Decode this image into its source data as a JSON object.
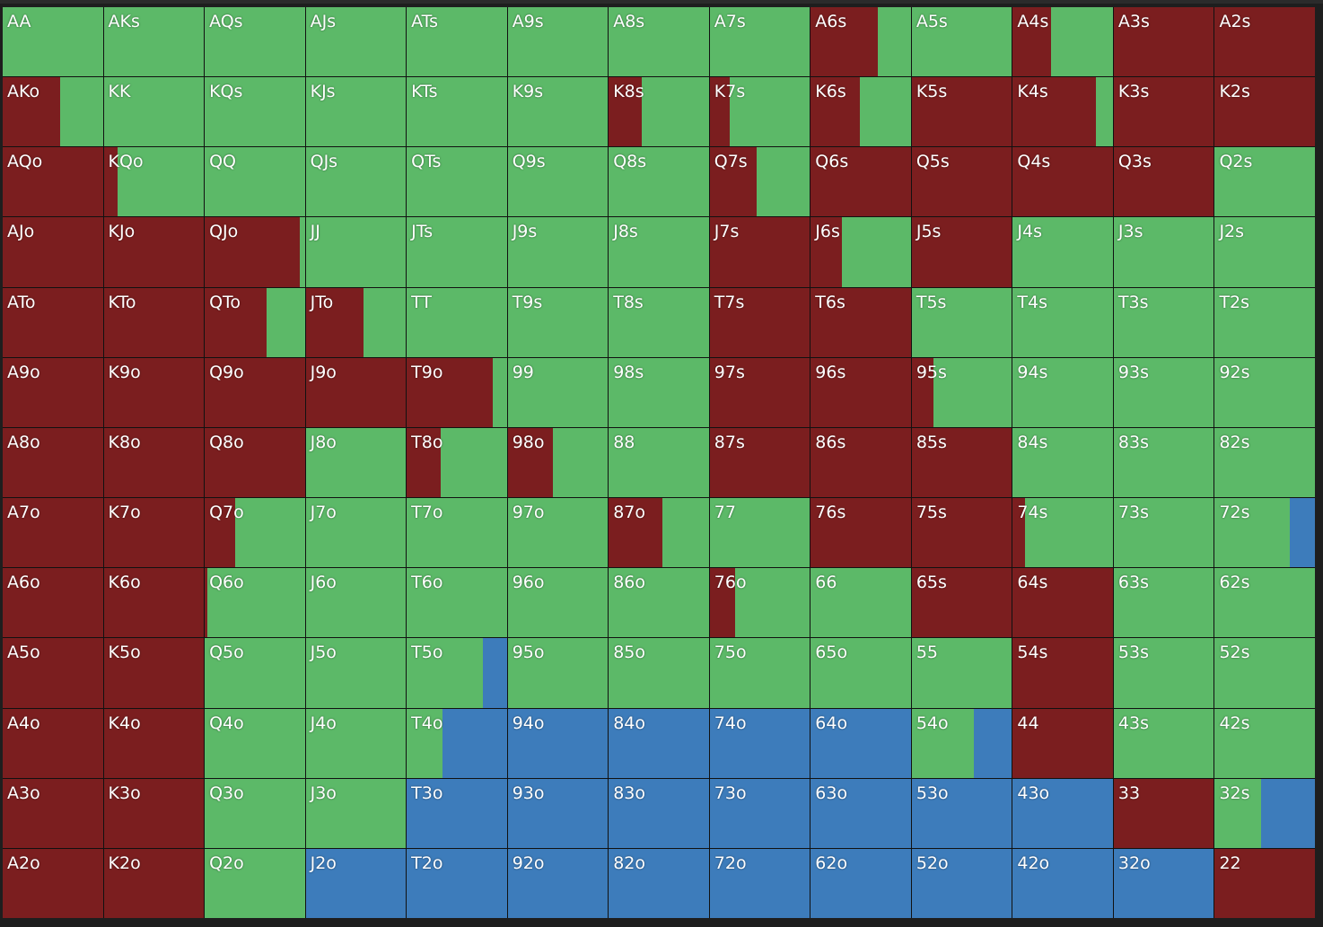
{
  "colors": [
    "#7b1e1f",
    "#5cb968",
    "#3d7cbb"
  ],
  "rows": [
    [
      {
        "label": "AA",
        "mix": [
          0,
          100,
          0
        ]
      },
      {
        "label": "AKs",
        "mix": [
          0,
          100,
          0
        ]
      },
      {
        "label": "AQs",
        "mix": [
          0,
          100,
          0
        ]
      },
      {
        "label": "AJs",
        "mix": [
          0,
          100,
          0
        ]
      },
      {
        "label": "ATs",
        "mix": [
          0,
          100,
          0
        ]
      },
      {
        "label": "A9s",
        "mix": [
          0,
          100,
          0
        ]
      },
      {
        "label": "A8s",
        "mix": [
          0,
          100,
          0
        ]
      },
      {
        "label": "A7s",
        "mix": [
          0,
          100,
          0
        ]
      },
      {
        "label": "A6s",
        "mix": [
          67,
          33,
          0
        ]
      },
      {
        "label": "A5s",
        "mix": [
          0,
          100,
          0
        ]
      },
      {
        "label": "A4s",
        "mix": [
          38,
          62,
          0
        ]
      },
      {
        "label": "A3s",
        "mix": [
          100,
          0,
          0
        ]
      },
      {
        "label": "A2s",
        "mix": [
          100,
          0,
          0
        ]
      }
    ],
    [
      {
        "label": "AKo",
        "mix": [
          57,
          43,
          0
        ]
      },
      {
        "label": "KK",
        "mix": [
          0,
          100,
          0
        ]
      },
      {
        "label": "KQs",
        "mix": [
          0,
          100,
          0
        ]
      },
      {
        "label": "KJs",
        "mix": [
          0,
          100,
          0
        ]
      },
      {
        "label": "KTs",
        "mix": [
          0,
          100,
          0
        ]
      },
      {
        "label": "K9s",
        "mix": [
          0,
          100,
          0
        ]
      },
      {
        "label": "K8s",
        "mix": [
          33,
          67,
          0
        ]
      },
      {
        "label": "K7s",
        "mix": [
          20,
          80,
          0
        ]
      },
      {
        "label": "K6s",
        "mix": [
          49,
          51,
          0
        ]
      },
      {
        "label": "K5s",
        "mix": [
          100,
          0,
          0
        ]
      },
      {
        "label": "K4s",
        "mix": [
          83,
          17,
          0
        ]
      },
      {
        "label": "K3s",
        "mix": [
          100,
          0,
          0
        ]
      },
      {
        "label": "K2s",
        "mix": [
          100,
          0,
          0
        ]
      }
    ],
    [
      {
        "label": "AQo",
        "mix": [
          100,
          0,
          0
        ]
      },
      {
        "label": "KQo",
        "mix": [
          14,
          86,
          0
        ]
      },
      {
        "label": "QQ",
        "mix": [
          0,
          100,
          0
        ]
      },
      {
        "label": "QJs",
        "mix": [
          0,
          100,
          0
        ]
      },
      {
        "label": "QTs",
        "mix": [
          0,
          100,
          0
        ]
      },
      {
        "label": "Q9s",
        "mix": [
          0,
          100,
          0
        ]
      },
      {
        "label": "Q8s",
        "mix": [
          0,
          100,
          0
        ]
      },
      {
        "label": "Q7s",
        "mix": [
          47,
          53,
          0
        ]
      },
      {
        "label": "Q6s",
        "mix": [
          100,
          0,
          0
        ]
      },
      {
        "label": "Q5s",
        "mix": [
          100,
          0,
          0
        ]
      },
      {
        "label": "Q4s",
        "mix": [
          100,
          0,
          0
        ]
      },
      {
        "label": "Q3s",
        "mix": [
          100,
          0,
          0
        ]
      },
      {
        "label": "Q2s",
        "mix": [
          0,
          100,
          0
        ]
      }
    ],
    [
      {
        "label": "AJo",
        "mix": [
          100,
          0,
          0
        ]
      },
      {
        "label": "KJo",
        "mix": [
          100,
          0,
          0
        ]
      },
      {
        "label": "QJo",
        "mix": [
          95,
          5,
          0
        ]
      },
      {
        "label": "JJ",
        "mix": [
          0,
          100,
          0
        ]
      },
      {
        "label": "JTs",
        "mix": [
          0,
          100,
          0
        ]
      },
      {
        "label": "J9s",
        "mix": [
          0,
          100,
          0
        ]
      },
      {
        "label": "J8s",
        "mix": [
          0,
          100,
          0
        ]
      },
      {
        "label": "J7s",
        "mix": [
          100,
          0,
          0
        ]
      },
      {
        "label": "J6s",
        "mix": [
          31,
          69,
          0
        ]
      },
      {
        "label": "J5s",
        "mix": [
          100,
          0,
          0
        ]
      },
      {
        "label": "J4s",
        "mix": [
          0,
          100,
          0
        ]
      },
      {
        "label": "J3s",
        "mix": [
          0,
          100,
          0
        ]
      },
      {
        "label": "J2s",
        "mix": [
          0,
          100,
          0
        ]
      }
    ],
    [
      {
        "label": "ATo",
        "mix": [
          100,
          0,
          0
        ]
      },
      {
        "label": "KTo",
        "mix": [
          100,
          0,
          0
        ]
      },
      {
        "label": "QTo",
        "mix": [
          62,
          38,
          0
        ]
      },
      {
        "label": "JTo",
        "mix": [
          58,
          42,
          0
        ]
      },
      {
        "label": "TT",
        "mix": [
          0,
          100,
          0
        ]
      },
      {
        "label": "T9s",
        "mix": [
          0,
          100,
          0
        ]
      },
      {
        "label": "T8s",
        "mix": [
          0,
          100,
          0
        ]
      },
      {
        "label": "T7s",
        "mix": [
          100,
          0,
          0
        ]
      },
      {
        "label": "T6s",
        "mix": [
          100,
          0,
          0
        ]
      },
      {
        "label": "T5s",
        "mix": [
          0,
          100,
          0
        ]
      },
      {
        "label": "T4s",
        "mix": [
          0,
          100,
          0
        ]
      },
      {
        "label": "T3s",
        "mix": [
          0,
          100,
          0
        ]
      },
      {
        "label": "T2s",
        "mix": [
          0,
          100,
          0
        ]
      }
    ],
    [
      {
        "label": "A9o",
        "mix": [
          100,
          0,
          0
        ]
      },
      {
        "label": "K9o",
        "mix": [
          100,
          0,
          0
        ]
      },
      {
        "label": "Q9o",
        "mix": [
          100,
          0,
          0
        ]
      },
      {
        "label": "J9o",
        "mix": [
          100,
          0,
          0
        ]
      },
      {
        "label": "T9o",
        "mix": [
          86,
          14,
          0
        ]
      },
      {
        "label": "99",
        "mix": [
          0,
          100,
          0
        ]
      },
      {
        "label": "98s",
        "mix": [
          0,
          100,
          0
        ]
      },
      {
        "label": "97s",
        "mix": [
          100,
          0,
          0
        ]
      },
      {
        "label": "96s",
        "mix": [
          100,
          0,
          0
        ]
      },
      {
        "label": "95s",
        "mix": [
          22,
          78,
          0
        ]
      },
      {
        "label": "94s",
        "mix": [
          0,
          100,
          0
        ]
      },
      {
        "label": "93s",
        "mix": [
          0,
          100,
          0
        ]
      },
      {
        "label": "92s",
        "mix": [
          0,
          100,
          0
        ]
      }
    ],
    [
      {
        "label": "A8o",
        "mix": [
          100,
          0,
          0
        ]
      },
      {
        "label": "K8o",
        "mix": [
          100,
          0,
          0
        ]
      },
      {
        "label": "Q8o",
        "mix": [
          100,
          0,
          0
        ]
      },
      {
        "label": "J8o",
        "mix": [
          0,
          100,
          0
        ]
      },
      {
        "label": "T8o",
        "mix": [
          34,
          66,
          0
        ]
      },
      {
        "label": "98o",
        "mix": [
          45,
          55,
          0
        ]
      },
      {
        "label": "88",
        "mix": [
          0,
          100,
          0
        ]
      },
      {
        "label": "87s",
        "mix": [
          100,
          0,
          0
        ]
      },
      {
        "label": "86s",
        "mix": [
          100,
          0,
          0
        ]
      },
      {
        "label": "85s",
        "mix": [
          100,
          0,
          0
        ]
      },
      {
        "label": "84s",
        "mix": [
          0,
          100,
          0
        ]
      },
      {
        "label": "83s",
        "mix": [
          0,
          100,
          0
        ]
      },
      {
        "label": "82s",
        "mix": [
          0,
          100,
          0
        ]
      }
    ],
    [
      {
        "label": "A7o",
        "mix": [
          100,
          0,
          0
        ]
      },
      {
        "label": "K7o",
        "mix": [
          100,
          0,
          0
        ]
      },
      {
        "label": "Q7o",
        "mix": [
          30,
          70,
          0
        ]
      },
      {
        "label": "J7o",
        "mix": [
          0,
          100,
          0
        ]
      },
      {
        "label": "T7o",
        "mix": [
          0,
          100,
          0
        ]
      },
      {
        "label": "97o",
        "mix": [
          0,
          100,
          0
        ]
      },
      {
        "label": "87o",
        "mix": [
          54,
          46,
          0
        ]
      },
      {
        "label": "77",
        "mix": [
          0,
          100,
          0
        ]
      },
      {
        "label": "76s",
        "mix": [
          100,
          0,
          0
        ]
      },
      {
        "label": "75s",
        "mix": [
          100,
          0,
          0
        ]
      },
      {
        "label": "74s",
        "mix": [
          12,
          88,
          0
        ]
      },
      {
        "label": "73s",
        "mix": [
          0,
          100,
          0
        ]
      },
      {
        "label": "72s",
        "mix": [
          0,
          75,
          25
        ]
      }
    ],
    [
      {
        "label": "A6o",
        "mix": [
          100,
          0,
          0
        ]
      },
      {
        "label": "K6o",
        "mix": [
          100,
          0,
          0
        ]
      },
      {
        "label": "Q6o",
        "mix": [
          3,
          97,
          0
        ]
      },
      {
        "label": "J6o",
        "mix": [
          0,
          100,
          0
        ]
      },
      {
        "label": "T6o",
        "mix": [
          0,
          100,
          0
        ]
      },
      {
        "label": "96o",
        "mix": [
          0,
          100,
          0
        ]
      },
      {
        "label": "86o",
        "mix": [
          0,
          100,
          0
        ]
      },
      {
        "label": "76o",
        "mix": [
          25,
          75,
          0
        ]
      },
      {
        "label": "66",
        "mix": [
          0,
          100,
          0
        ]
      },
      {
        "label": "65s",
        "mix": [
          100,
          0,
          0
        ]
      },
      {
        "label": "64s",
        "mix": [
          100,
          0,
          0
        ]
      },
      {
        "label": "63s",
        "mix": [
          0,
          100,
          0
        ]
      },
      {
        "label": "62s",
        "mix": [
          0,
          100,
          0
        ]
      }
    ],
    [
      {
        "label": "A5o",
        "mix": [
          100,
          0,
          0
        ]
      },
      {
        "label": "K5o",
        "mix": [
          100,
          0,
          0
        ]
      },
      {
        "label": "Q5o",
        "mix": [
          0,
          100,
          0
        ]
      },
      {
        "label": "J5o",
        "mix": [
          0,
          100,
          0
        ]
      },
      {
        "label": "T5o",
        "mix": [
          0,
          76,
          24
        ]
      },
      {
        "label": "95o",
        "mix": [
          0,
          100,
          0
        ]
      },
      {
        "label": "85o",
        "mix": [
          0,
          100,
          0
        ]
      },
      {
        "label": "75o",
        "mix": [
          0,
          100,
          0
        ]
      },
      {
        "label": "65o",
        "mix": [
          0,
          100,
          0
        ]
      },
      {
        "label": "55",
        "mix": [
          0,
          100,
          0
        ]
      },
      {
        "label": "54s",
        "mix": [
          100,
          0,
          0
        ]
      },
      {
        "label": "53s",
        "mix": [
          0,
          100,
          0
        ]
      },
      {
        "label": "52s",
        "mix": [
          0,
          100,
          0
        ]
      }
    ],
    [
      {
        "label": "A4o",
        "mix": [
          100,
          0,
          0
        ]
      },
      {
        "label": "K4o",
        "mix": [
          100,
          0,
          0
        ]
      },
      {
        "label": "Q4o",
        "mix": [
          0,
          100,
          0
        ]
      },
      {
        "label": "J4o",
        "mix": [
          0,
          100,
          0
        ]
      },
      {
        "label": "T4o",
        "mix": [
          0,
          36,
          64
        ]
      },
      {
        "label": "94o",
        "mix": [
          0,
          0,
          100
        ]
      },
      {
        "label": "84o",
        "mix": [
          0,
          0,
          100
        ]
      },
      {
        "label": "74o",
        "mix": [
          0,
          0,
          100
        ]
      },
      {
        "label": "64o",
        "mix": [
          0,
          0,
          100
        ]
      },
      {
        "label": "54o",
        "mix": [
          0,
          62,
          38
        ]
      },
      {
        "label": "44",
        "mix": [
          100,
          0,
          0
        ]
      },
      {
        "label": "43s",
        "mix": [
          0,
          100,
          0
        ]
      },
      {
        "label": "42s",
        "mix": [
          0,
          100,
          0
        ]
      }
    ],
    [
      {
        "label": "A3o",
        "mix": [
          100,
          0,
          0
        ]
      },
      {
        "label": "K3o",
        "mix": [
          100,
          0,
          0
        ]
      },
      {
        "label": "Q3o",
        "mix": [
          0,
          100,
          0
        ]
      },
      {
        "label": "J3o",
        "mix": [
          0,
          100,
          0
        ]
      },
      {
        "label": "T3o",
        "mix": [
          0,
          0,
          100
        ]
      },
      {
        "label": "93o",
        "mix": [
          0,
          0,
          100
        ]
      },
      {
        "label": "83o",
        "mix": [
          0,
          0,
          100
        ]
      },
      {
        "label": "73o",
        "mix": [
          0,
          0,
          100
        ]
      },
      {
        "label": "63o",
        "mix": [
          0,
          0,
          100
        ]
      },
      {
        "label": "53o",
        "mix": [
          0,
          0,
          100
        ]
      },
      {
        "label": "43o",
        "mix": [
          0,
          0,
          100
        ]
      },
      {
        "label": "33",
        "mix": [
          100,
          0,
          0
        ]
      },
      {
        "label": "32s",
        "mix": [
          0,
          46,
          54
        ]
      }
    ],
    [
      {
        "label": "A2o",
        "mix": [
          100,
          0,
          0
        ]
      },
      {
        "label": "K2o",
        "mix": [
          100,
          0,
          0
        ]
      },
      {
        "label": "Q2o",
        "mix": [
          0,
          100,
          0
        ]
      },
      {
        "label": "J2o",
        "mix": [
          0,
          0,
          100
        ]
      },
      {
        "label": "T2o",
        "mix": [
          0,
          0,
          100
        ]
      },
      {
        "label": "92o",
        "mix": [
          0,
          0,
          100
        ]
      },
      {
        "label": "82o",
        "mix": [
          0,
          0,
          100
        ]
      },
      {
        "label": "72o",
        "mix": [
          0,
          0,
          100
        ]
      },
      {
        "label": "62o",
        "mix": [
          0,
          0,
          100
        ]
      },
      {
        "label": "52o",
        "mix": [
          0,
          0,
          100
        ]
      },
      {
        "label": "42o",
        "mix": [
          0,
          0,
          100
        ]
      },
      {
        "label": "32o",
        "mix": [
          0,
          0,
          100
        ]
      },
      {
        "label": "22",
        "mix": [
          100,
          0,
          0
        ]
      }
    ]
  ]
}
